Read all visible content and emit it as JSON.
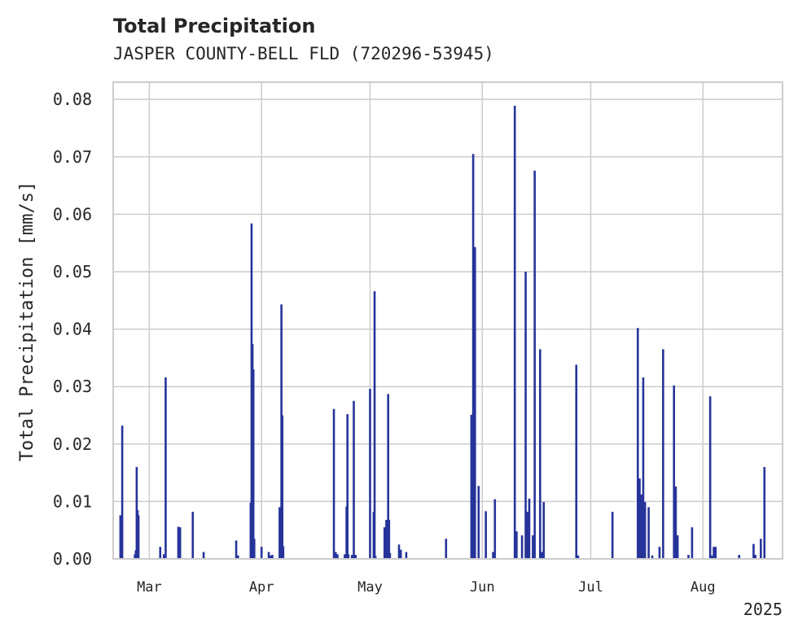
{
  "chart_data": {
    "type": "bar",
    "title": "Total Precipitation",
    "subtitle": "JASPER COUNTY-BELL FLD (720296-53945)",
    "ylabel": "Total Precipitation [mm/s]",
    "xlabel": "",
    "year_label": "2025",
    "ylim": [
      0,
      0.083
    ],
    "xlim": [
      "2025-02-19",
      "2025-08-23"
    ],
    "grid": true,
    "y_ticks": [
      "0.00",
      "0.01",
      "0.02",
      "0.03",
      "0.04",
      "0.05",
      "0.06",
      "0.07",
      "0.08"
    ],
    "x_ticks": [
      {
        "label": "Mar",
        "date": "2025-03-01"
      },
      {
        "label": "Apr",
        "date": "2025-04-01"
      },
      {
        "label": "May",
        "date": "2025-05-01"
      },
      {
        "label": "Jun",
        "date": "2025-06-01"
      },
      {
        "label": "Jul",
        "date": "2025-07-01"
      },
      {
        "label": "Aug",
        "date": "2025-08-01"
      }
    ],
    "series": [
      {
        "color": "#26349a",
        "points": [
          {
            "x": "2025-02-21",
            "y": 0.0076
          },
          {
            "x": "2025-02-21T12:00",
            "y": 0.0232
          },
          {
            "x": "2025-02-25",
            "y": 0.0008
          },
          {
            "x": "2025-02-25T06:00",
            "y": 0.0015
          },
          {
            "x": "2025-02-25T12:00",
            "y": 0.016
          },
          {
            "x": "2025-02-25T18:00",
            "y": 0.0085
          },
          {
            "x": "2025-02-26",
            "y": 0.0076
          },
          {
            "x": "2025-03-04",
            "y": 0.0021
          },
          {
            "x": "2025-03-05",
            "y": 0.0008
          },
          {
            "x": "2025-03-05T12:00",
            "y": 0.0316
          },
          {
            "x": "2025-03-09",
            "y": 0.0056
          },
          {
            "x": "2025-03-09T12:00",
            "y": 0.0055
          },
          {
            "x": "2025-03-13",
            "y": 0.0082
          },
          {
            "x": "2025-03-16",
            "y": 0.0012
          },
          {
            "x": "2025-03-25",
            "y": 0.0032
          },
          {
            "x": "2025-03-25T12:00",
            "y": 0.0006
          },
          {
            "x": "2025-03-29",
            "y": 0.0098
          },
          {
            "x": "2025-03-29T06:00",
            "y": 0.0584
          },
          {
            "x": "2025-03-29T12:00",
            "y": 0.0374
          },
          {
            "x": "2025-03-29T18:00",
            "y": 0.033
          },
          {
            "x": "2025-03-30",
            "y": 0.0035
          },
          {
            "x": "2025-04-01",
            "y": 0.0021
          },
          {
            "x": "2025-04-03",
            "y": 0.0012
          },
          {
            "x": "2025-04-03T12:00",
            "y": 0.0006
          },
          {
            "x": "2025-04-04",
            "y": 0.0007
          },
          {
            "x": "2025-04-06",
            "y": 0.009
          },
          {
            "x": "2025-04-06T12:00",
            "y": 0.0443
          },
          {
            "x": "2025-04-06T18:00",
            "y": 0.025
          },
          {
            "x": "2025-04-07",
            "y": 0.0022
          },
          {
            "x": "2025-04-21",
            "y": 0.0261
          },
          {
            "x": "2025-04-21T12:00",
            "y": 0.0012
          },
          {
            "x": "2025-04-22",
            "y": 0.0008
          },
          {
            "x": "2025-04-24",
            "y": 0.0008
          },
          {
            "x": "2025-04-24T12:00",
            "y": 0.0091
          },
          {
            "x": "2025-04-24T18:00",
            "y": 0.0252
          },
          {
            "x": "2025-04-25",
            "y": 0.0008
          },
          {
            "x": "2025-04-26",
            "y": 0.0007
          },
          {
            "x": "2025-04-26T12:00",
            "y": 0.0275
          },
          {
            "x": "2025-04-27",
            "y": 0.0007
          },
          {
            "x": "2025-05-01",
            "y": 0.0296
          },
          {
            "x": "2025-05-02",
            "y": 0.0082
          },
          {
            "x": "2025-05-02T06:00",
            "y": 0.0466
          },
          {
            "x": "2025-05-02T12:00",
            "y": 0.0005
          },
          {
            "x": "2025-05-05",
            "y": 0.0055
          },
          {
            "x": "2025-05-05T12:00",
            "y": 0.0068
          },
          {
            "x": "2025-05-06",
            "y": 0.0287
          },
          {
            "x": "2025-05-06T06:00",
            "y": 0.0068
          },
          {
            "x": "2025-05-06T12:00",
            "y": 0.001
          },
          {
            "x": "2025-05-09",
            "y": 0.0025
          },
          {
            "x": "2025-05-09T12:00",
            "y": 0.0016
          },
          {
            "x": "2025-05-11",
            "y": 0.0012
          },
          {
            "x": "2025-05-22",
            "y": 0.0035
          },
          {
            "x": "2025-05-29",
            "y": 0.0251
          },
          {
            "x": "2025-05-29T12:00",
            "y": 0.0705
          },
          {
            "x": "2025-05-30",
            "y": 0.0543
          },
          {
            "x": "2025-05-31",
            "y": 0.0127
          },
          {
            "x": "2025-06-02",
            "y": 0.0083
          },
          {
            "x": "2025-06-04",
            "y": 0.0012
          },
          {
            "x": "2025-06-04T12:00",
            "y": 0.0104
          },
          {
            "x": "2025-06-10",
            "y": 0.0789
          },
          {
            "x": "2025-06-10T12:00",
            "y": 0.0048
          },
          {
            "x": "2025-06-12",
            "y": 0.0041
          },
          {
            "x": "2025-06-13",
            "y": 0.05
          },
          {
            "x": "2025-06-13T12:00",
            "y": 0.0082
          },
          {
            "x": "2025-06-14",
            "y": 0.0105
          },
          {
            "x": "2025-06-15",
            "y": 0.0041
          },
          {
            "x": "2025-06-15T12:00",
            "y": 0.0676
          },
          {
            "x": "2025-06-17",
            "y": 0.0365
          },
          {
            "x": "2025-06-17T12:00",
            "y": 0.0012
          },
          {
            "x": "2025-06-18",
            "y": 0.0099
          },
          {
            "x": "2025-06-27",
            "y": 0.0338
          },
          {
            "x": "2025-06-27T12:00",
            "y": 0.0006
          },
          {
            "x": "2025-07-07",
            "y": 0.0082
          },
          {
            "x": "2025-07-14",
            "y": 0.0402
          },
          {
            "x": "2025-07-14T12:00",
            "y": 0.014
          },
          {
            "x": "2025-07-15",
            "y": 0.0112
          },
          {
            "x": "2025-07-15T12:00",
            "y": 0.0316
          },
          {
            "x": "2025-07-16",
            "y": 0.0099
          },
          {
            "x": "2025-07-17",
            "y": 0.009
          },
          {
            "x": "2025-07-18",
            "y": 0.0006
          },
          {
            "x": "2025-07-20",
            "y": 0.0021
          },
          {
            "x": "2025-07-21",
            "y": 0.0365
          },
          {
            "x": "2025-07-24",
            "y": 0.0302
          },
          {
            "x": "2025-07-24T12:00",
            "y": 0.0126
          },
          {
            "x": "2025-07-25",
            "y": 0.0041
          },
          {
            "x": "2025-07-28",
            "y": 0.0007
          },
          {
            "x": "2025-07-29",
            "y": 0.0055
          },
          {
            "x": "2025-08-03",
            "y": 0.0283
          },
          {
            "x": "2025-08-03T12:00",
            "y": 0.0006
          },
          {
            "x": "2025-08-04",
            "y": 0.0021
          },
          {
            "x": "2025-08-04T12:00",
            "y": 0.0021
          },
          {
            "x": "2025-08-11",
            "y": 0.0007
          },
          {
            "x": "2025-08-15",
            "y": 0.0026
          },
          {
            "x": "2025-08-15T12:00",
            "y": 0.0007
          },
          {
            "x": "2025-08-17",
            "y": 0.0035
          },
          {
            "x": "2025-08-18",
            "y": 0.016
          }
        ]
      }
    ]
  }
}
